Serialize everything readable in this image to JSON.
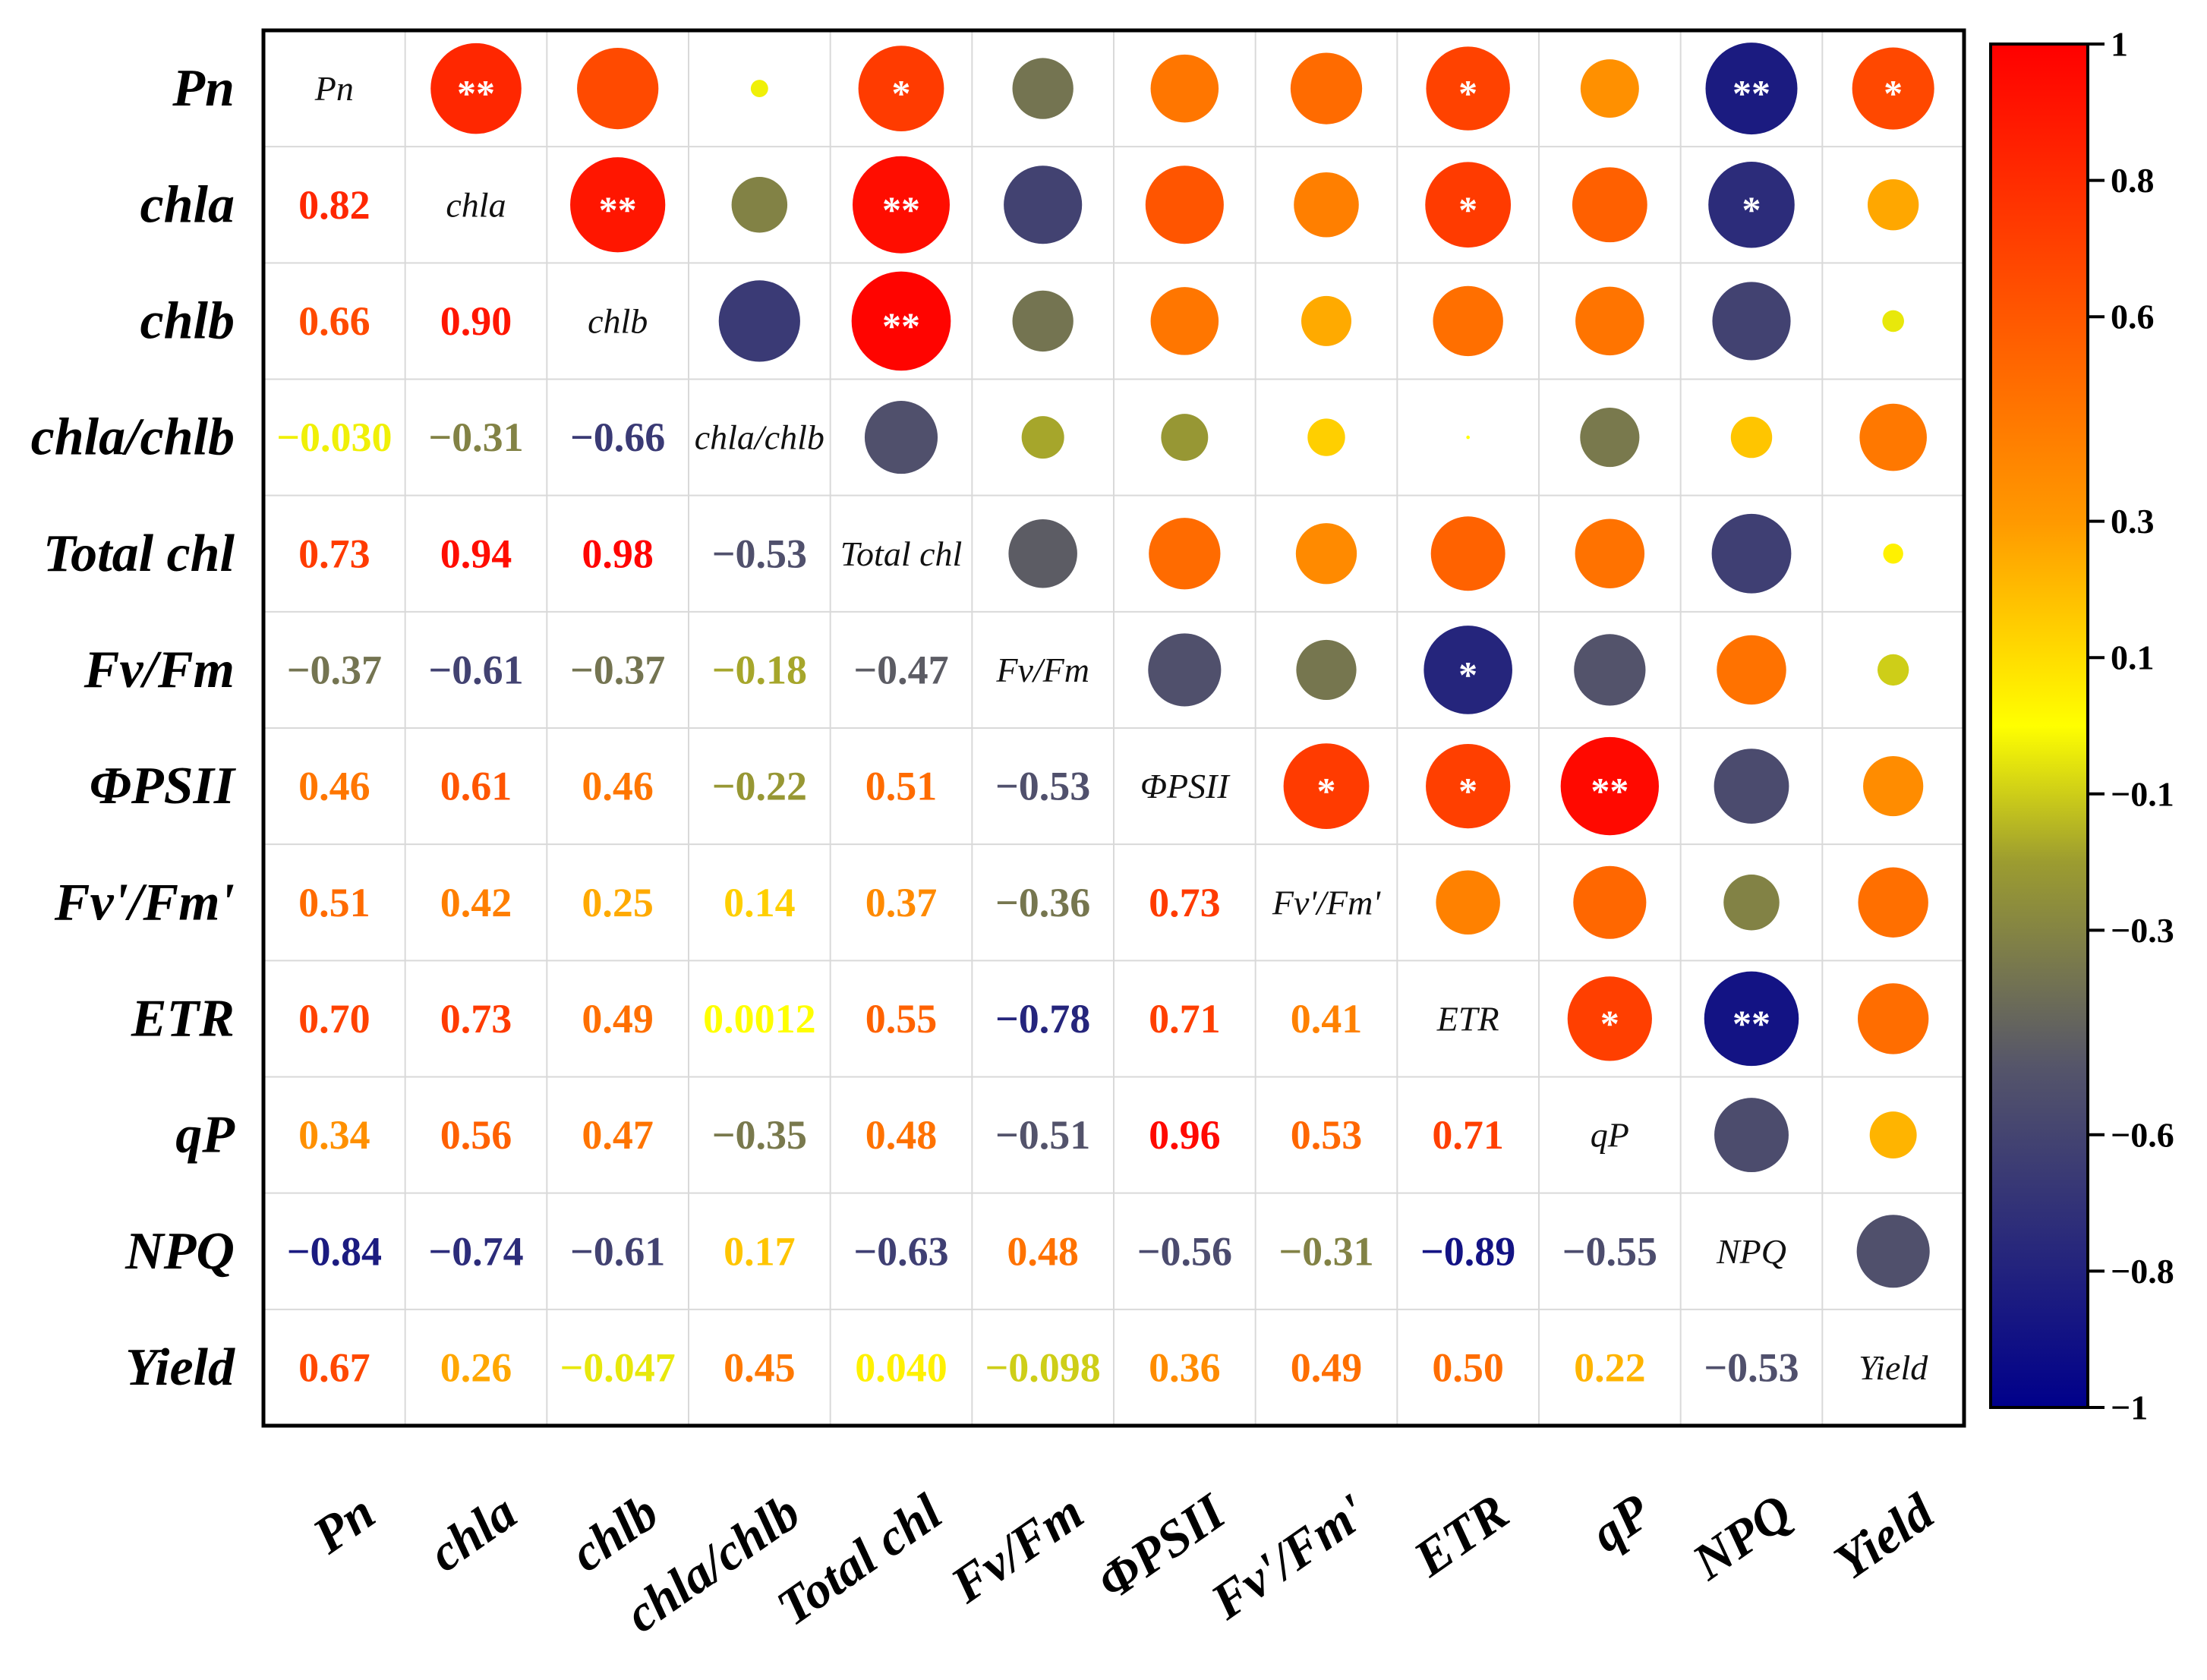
{
  "chart_data": {
    "type": "heatmap",
    "title": "",
    "xlabel": "",
    "ylabel": "",
    "variables": [
      "Pn",
      "chla",
      "chlb",
      "chla/chlb",
      "Total chl",
      "Fv/Fm",
      "ΦPSII",
      "Fv'/Fm'",
      "ETR",
      "qP",
      "NPQ",
      "Yield"
    ],
    "correlations": [
      [
        1,
        0.82,
        0.66,
        -0.03,
        0.73,
        -0.37,
        0.46,
        0.51,
        0.7,
        0.34,
        -0.84,
        0.67
      ],
      [
        0.82,
        1,
        0.9,
        -0.31,
        0.94,
        -0.61,
        0.61,
        0.42,
        0.73,
        0.56,
        -0.74,
        0.26
      ],
      [
        0.66,
        0.9,
        1,
        -0.66,
        0.98,
        -0.37,
        0.46,
        0.25,
        0.49,
        0.47,
        -0.61,
        -0.047
      ],
      [
        -0.03,
        -0.31,
        -0.66,
        1,
        -0.53,
        -0.18,
        -0.22,
        0.14,
        0.0012,
        -0.35,
        0.17,
        0.45
      ],
      [
        0.73,
        0.94,
        0.98,
        -0.53,
        1,
        -0.47,
        0.51,
        0.37,
        0.55,
        0.48,
        -0.63,
        0.04
      ],
      [
        -0.37,
        -0.61,
        -0.37,
        -0.18,
        -0.47,
        1,
        -0.53,
        -0.36,
        -0.78,
        -0.51,
        0.48,
        -0.098
      ],
      [
        0.46,
        0.61,
        0.46,
        -0.22,
        0.51,
        -0.53,
        1,
        0.73,
        0.71,
        0.96,
        -0.56,
        0.36
      ],
      [
        0.51,
        0.42,
        0.25,
        0.14,
        0.37,
        -0.36,
        0.73,
        1,
        0.41,
        0.53,
        -0.31,
        0.49
      ],
      [
        0.7,
        0.73,
        0.49,
        0.0012,
        0.55,
        -0.78,
        0.71,
        0.41,
        1,
        0.71,
        -0.89,
        0.5
      ],
      [
        0.34,
        0.56,
        0.47,
        -0.35,
        0.48,
        -0.51,
        0.96,
        0.53,
        0.71,
        1,
        -0.55,
        0.22
      ],
      [
        -0.84,
        -0.74,
        -0.61,
        0.17,
        -0.63,
        0.48,
        -0.56,
        -0.31,
        -0.89,
        -0.55,
        1,
        -0.53
      ],
      [
        0.67,
        0.26,
        -0.047,
        0.45,
        0.04,
        -0.098,
        0.36,
        0.49,
        0.5,
        0.22,
        -0.53,
        1
      ]
    ],
    "lower_labels": [
      [
        null,
        null,
        null,
        null,
        null,
        null,
        null,
        null,
        null,
        null,
        null,
        null
      ],
      [
        "0.82",
        null,
        null,
        null,
        null,
        null,
        null,
        null,
        null,
        null,
        null,
        null
      ],
      [
        "0.66",
        "0.90",
        null,
        null,
        null,
        null,
        null,
        null,
        null,
        null,
        null,
        null
      ],
      [
        "−0.030",
        "−0.31",
        "−0.66",
        null,
        null,
        null,
        null,
        null,
        null,
        null,
        null,
        null
      ],
      [
        "0.73",
        "0.94",
        "0.98",
        "−0.53",
        null,
        null,
        null,
        null,
        null,
        null,
        null,
        null
      ],
      [
        "−0.37",
        "−0.61",
        "−0.37",
        "−0.18",
        "−0.47",
        null,
        null,
        null,
        null,
        null,
        null,
        null
      ],
      [
        "0.46",
        "0.61",
        "0.46",
        "−0.22",
        "0.51",
        "−0.53",
        null,
        null,
        null,
        null,
        null,
        null
      ],
      [
        "0.51",
        "0.42",
        "0.25",
        "0.14",
        "0.37",
        "−0.36",
        "0.73",
        null,
        null,
        null,
        null,
        null
      ],
      [
        "0.70",
        "0.73",
        "0.49",
        "0.0012",
        "0.55",
        "−0.78",
        "0.71",
        "0.41",
        null,
        null,
        null,
        null
      ],
      [
        "0.34",
        "0.56",
        "0.47",
        "−0.35",
        "0.48",
        "−0.51",
        "0.96",
        "0.53",
        "0.71",
        null,
        null,
        null
      ],
      [
        "−0.84",
        "−0.74",
        "−0.61",
        "0.17",
        "−0.63",
        "0.48",
        "−0.56",
        "−0.31",
        "−0.89",
        "−0.55",
        null,
        null
      ],
      [
        "0.67",
        "0.26",
        "−0.047",
        "0.45",
        "0.040",
        "−0.098",
        "0.36",
        "0.49",
        "0.50",
        "0.22",
        "−0.53",
        null
      ]
    ],
    "significance": [
      [
        "",
        "**",
        "",
        "",
        "*",
        "",
        "",
        "",
        "*",
        "",
        "**",
        "*"
      ],
      [
        "",
        "",
        "**",
        "",
        "**",
        "",
        "",
        "",
        "*",
        "",
        "*",
        ""
      ],
      [
        "",
        "",
        "",
        "",
        "**",
        "",
        "",
        "",
        "",
        "",
        "",
        ""
      ],
      [
        "",
        "",
        "",
        "",
        "",
        "",
        "",
        "",
        "",
        "",
        "",
        ""
      ],
      [
        "",
        "",
        "",
        "",
        "",
        "",
        "",
        "",
        "",
        "",
        "",
        ""
      ],
      [
        "",
        "",
        "",
        "",
        "",
        "",
        "",
        "",
        "*",
        "",
        "",
        ""
      ],
      [
        "",
        "",
        "",
        "",
        "",
        "",
        "",
        "*",
        "*",
        "**",
        "",
        ""
      ],
      [
        "",
        "",
        "",
        "",
        "",
        "",
        "",
        "",
        "",
        "",
        "",
        ""
      ],
      [
        "",
        "",
        "",
        "",
        "",
        "",
        "",
        "",
        "",
        "*",
        "**",
        ""
      ],
      [
        "",
        "",
        "",
        "",
        "",
        "",
        "",
        "",
        "",
        "",
        "",
        ""
      ],
      [
        "",
        "",
        "",
        "",
        "",
        "",
        "",
        "",
        "",
        "",
        "",
        ""
      ],
      [
        "",
        "",
        "",
        "",
        "",
        "",
        "",
        "",
        "",
        "",
        "",
        ""
      ]
    ],
    "upper_display": "circles",
    "lower_display": "numbers",
    "diagonal_display": "variable names",
    "colorbar": {
      "range": [
        -1,
        1
      ],
      "ticks": [
        1,
        0.8,
        0.6,
        0.3,
        0.1,
        -0.1,
        -0.3,
        -0.6,
        -0.8,
        -1
      ],
      "tick_labels": [
        "1",
        "0.8",
        "0.6",
        "0.3",
        "0.1",
        "−0.1",
        "−0.3",
        "−0.6",
        "−0.8",
        "−1"
      ],
      "stops": [
        {
          "value": -1,
          "color": "#00008B"
        },
        {
          "value": -0.5,
          "color": "#55556A"
        },
        {
          "value": -0.2,
          "color": "#9C9C30"
        },
        {
          "value": 0,
          "color": "#FFFF00"
        },
        {
          "value": 0.3,
          "color": "#FF9900"
        },
        {
          "value": 1,
          "color": "#FF0000"
        }
      ],
      "position": "right"
    }
  }
}
